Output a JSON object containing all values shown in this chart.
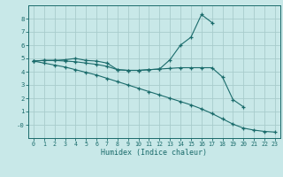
{
  "x": [
    0,
    1,
    2,
    3,
    4,
    5,
    6,
    7,
    8,
    9,
    10,
    11,
    12,
    13,
    14,
    15,
    16,
    17,
    18,
    19,
    20,
    21,
    22,
    23
  ],
  "line_peak": [
    4.8,
    4.85,
    4.85,
    4.8,
    4.75,
    4.65,
    4.55,
    4.4,
    4.15,
    4.1,
    4.1,
    4.15,
    4.2,
    4.9,
    6.0,
    6.6,
    8.3,
    7.7,
    null,
    null,
    null,
    null,
    null,
    null
  ],
  "line_mid": [
    4.8,
    4.85,
    4.85,
    4.9,
    5.0,
    4.85,
    4.8,
    4.65,
    4.15,
    4.1,
    4.1,
    4.15,
    4.2,
    4.25,
    4.3,
    4.3,
    4.3,
    4.3,
    3.6,
    1.9,
    1.35,
    null,
    null,
    null
  ],
  "line_low": [
    4.8,
    4.65,
    4.5,
    4.35,
    4.15,
    3.95,
    3.75,
    3.5,
    3.25,
    3.0,
    2.75,
    2.5,
    2.25,
    2.0,
    1.75,
    1.5,
    1.2,
    0.85,
    0.45,
    0.05,
    -0.25,
    -0.4,
    -0.5,
    -0.55
  ],
  "bg_color": "#c8e8e8",
  "grid_color": "#a8cccc",
  "line_color": "#1a6b6b",
  "xlabel": "Humidex (Indice chaleur)",
  "xlim": [
    -0.5,
    23.5
  ],
  "ylim": [
    -1.0,
    9.0
  ],
  "yticks": [
    0,
    1,
    2,
    3,
    4,
    5,
    6,
    7,
    8
  ],
  "ytick_labels": [
    "-0",
    "1",
    "2",
    "3",
    "4",
    "5",
    "6",
    "7",
    "8"
  ],
  "xticks": [
    0,
    1,
    2,
    3,
    4,
    5,
    6,
    7,
    8,
    9,
    10,
    11,
    12,
    13,
    14,
    15,
    16,
    17,
    18,
    19,
    20,
    21,
    22,
    23
  ]
}
